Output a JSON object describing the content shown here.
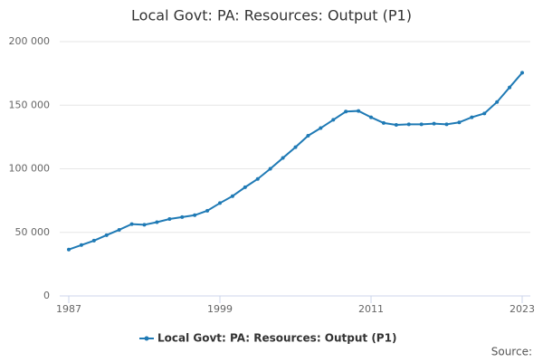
{
  "chart_data": {
    "type": "line",
    "title": "Local Govt: PA: Resources: Output (P1)",
    "x": [
      1987,
      1988,
      1989,
      1990,
      1991,
      1992,
      1993,
      1994,
      1995,
      1996,
      1997,
      1998,
      1999,
      2000,
      2001,
      2002,
      2003,
      2004,
      2005,
      2006,
      2007,
      2008,
      2009,
      2010,
      2011,
      2012,
      2013,
      2014,
      2015,
      2016,
      2017,
      2018,
      2019,
      2020,
      2021,
      2022,
      2023
    ],
    "series": [
      {
        "name": "Local Govt: PA: Resources: Output (P1)",
        "color": "#1f7ab5",
        "values": [
          36500,
          40000,
          43500,
          47800,
          52000,
          56500,
          56000,
          58000,
          60500,
          62000,
          63500,
          67000,
          73000,
          78500,
          85500,
          92000,
          100000,
          108500,
          117000,
          126000,
          132000,
          138500,
          145000,
          145500,
          140500,
          136000,
          134500,
          135000,
          135000,
          135500,
          135000,
          136500,
          140500,
          143500,
          152500,
          164000,
          175500
        ]
      }
    ],
    "xlim": [
      1987,
      2023
    ],
    "xticks": [
      1987,
      1999,
      2011,
      2023
    ],
    "ylim": [
      0,
      200000
    ],
    "yticks": [
      0,
      {
        "value": 50000,
        "label": "50 000"
      },
      {
        "value": 100000,
        "label": "100 000"
      },
      {
        "value": 150000,
        "label": "150 000"
      },
      {
        "value": 200000,
        "label": "200 000"
      }
    ],
    "grid": true,
    "source": "Source:"
  }
}
